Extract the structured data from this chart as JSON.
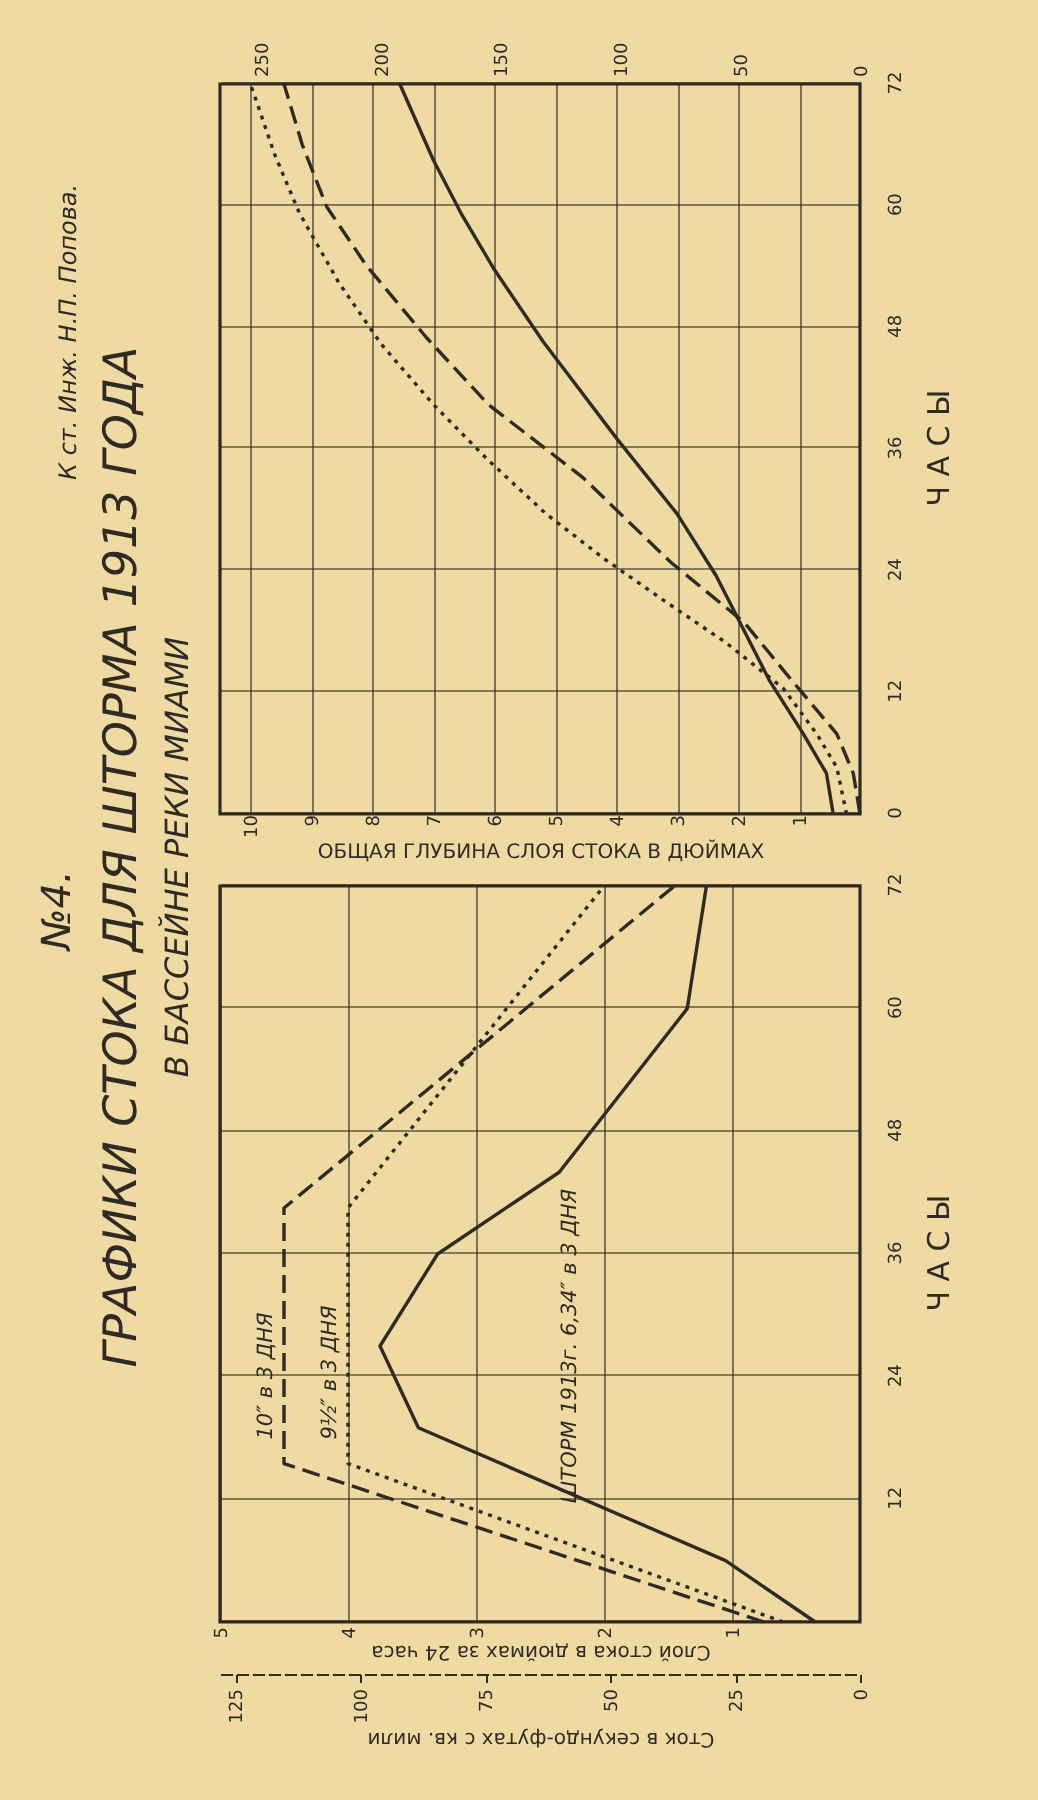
{
  "chart_data": [
    {
      "type": "line",
      "title": "ГРАФИКИ СТОКА ДЛЯ ШТОРМА 1913 ГОДА",
      "subtitle": "В БАССЕЙНЕ РЕКИ МИАМИ",
      "annotations": [
        "№4.",
        "К ст. Инж. Н.П. Попова."
      ],
      "xlabel": "ОБЩАЯ ГЛУБИНА СЛОЯ СТОКА В ДЮЙМАХ",
      "ylabel": "Ч А С Ы",
      "xlim": [
        10.5,
        0
      ],
      "xticks": [
        1,
        2,
        3,
        4,
        5,
        6,
        7,
        8,
        9,
        10
      ],
      "x2lim": [
        267,
        0
      ],
      "x2ticks": [
        0,
        50,
        100,
        150,
        200,
        250
      ],
      "ylim": [
        0,
        72
      ],
      "yticks": [
        0,
        12,
        24,
        36,
        48,
        60,
        72
      ],
      "grid": true,
      "series": [
        {
          "color": "#2e2b25",
          "line_style": "dotted",
          "x": [
            0.22,
            0.38,
            0.71,
            1.26,
            2.2,
            3.18,
            4.18,
            5.15,
            6.1,
            7.0,
            7.85,
            8.55,
            9.2,
            9.6,
            10.0
          ],
          "values": [
            0,
            4.6,
            7.9,
            12.4,
            16.9,
            20.9,
            25.1,
            29.6,
            34.9,
            40.4,
            46.3,
            52.4,
            59.3,
            65,
            72
          ]
        },
        {
          "color": "#2e2b25",
          "line_style": "dashed",
          "x": [
            0,
            0.11,
            0.38,
            1.15,
            1.9,
            3.1,
            4.55,
            6.1,
            7.1,
            8.1,
            8.75,
            9.15,
            9.45
          ],
          "values": [
            0,
            4,
            7.9,
            13.4,
            18.9,
            24.8,
            33.2,
            40.4,
            46.9,
            54.1,
            59.9,
            66,
            72
          ]
        },
        {
          "color": "#2e2b25",
          "line_style": "solid",
          "x": [
            0.44,
            0.55,
            0.93,
            1.48,
            2.36,
            3.0,
            4.0,
            5.2,
            6.0,
            6.55,
            7.0,
            7.55
          ],
          "values": [
            0,
            4,
            7.9,
            13.1,
            23.5,
            29.6,
            37.1,
            46.6,
            53.7,
            59.3,
            64.5,
            72
          ]
        }
      ]
    },
    {
      "type": "line",
      "xlabel": "Слой стока в дюймах за 24 часа",
      "x2label": "Сток в секундо-футах с кв. мили",
      "ylabel": "Ч А С Ы",
      "xlim": [
        5,
        0
      ],
      "xticks": [
        1,
        2,
        3,
        4,
        5
      ],
      "x2lim": [
        128,
        0
      ],
      "x2ticks": [
        0,
        25,
        50,
        75,
        100,
        125
      ],
      "ylim": [
        0,
        72
      ],
      "yticks": [
        {
          "value": 0,
          "label": null
        },
        12,
        24,
        36,
        48,
        60,
        72
      ],
      "grid": true,
      "series": [
        {
          "name": "10″ в 3 ДНЯ",
          "color": "#2e2b25",
          "line_style": "dashed",
          "x": [
            0.75,
            4.5,
            4.5,
            1.45
          ],
          "values": [
            0,
            15.5,
            40.5,
            72
          ]
        },
        {
          "name": "9½″ в 3 ДНЯ",
          "color": "#2e2b25",
          "line_style": "dotted",
          "x": [
            0.6,
            4.0,
            4.0,
            2.0
          ],
          "values": [
            0,
            15.5,
            40.5,
            72
          ]
        },
        {
          "name": "ШТОРМ 1913г. 6,34″ в 3 ДНЯ",
          "color": "#2e2b25",
          "line_style": "solid",
          "x": [
            0.35,
            1.05,
            3.45,
            3.75,
            3.3,
            2.35,
            1.35,
            1.2
          ],
          "values": [
            0,
            6,
            19,
            27,
            36,
            44,
            60,
            72
          ]
        }
      ]
    }
  ]
}
